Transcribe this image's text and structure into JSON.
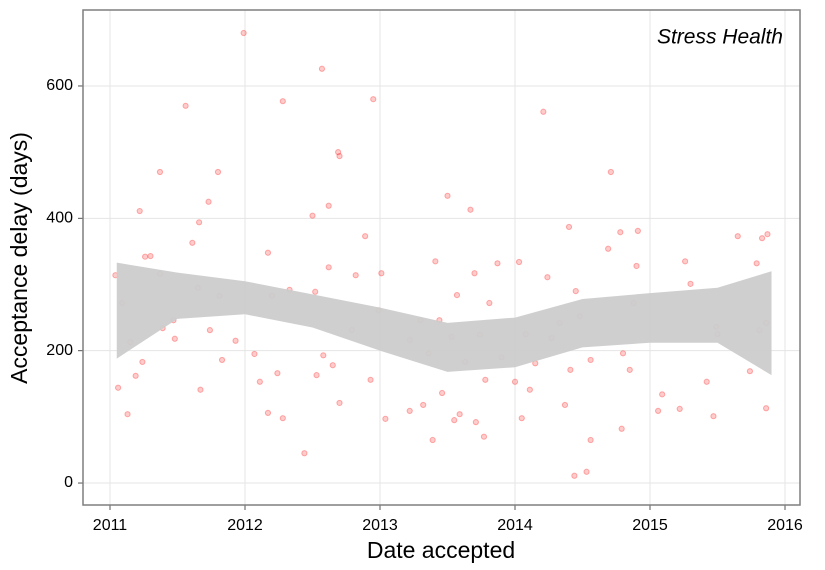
{
  "chart_data": {
    "type": "scatter",
    "annotation": "Stress Health",
    "x_label": "Date accepted",
    "y_label": "Acceptance delay (days)",
    "xlim": [
      2010.8,
      2016.111
    ],
    "xticks": [
      2011,
      2012,
      2013,
      2014,
      2015,
      2016
    ],
    "ylim": [
      -33.2,
      714.8
    ],
    "yticks": [
      0,
      200,
      400,
      600
    ],
    "grid": true,
    "points": {
      "color": "#ff0000",
      "alpha": 0.2,
      "x": [
        2011.04,
        2011.06,
        2011.09,
        2011.13,
        2011.15,
        2011.19,
        2011.22,
        2011.24,
        2011.26,
        2011.3,
        2011.37,
        2011.37,
        2011.39,
        2011.47,
        2011.48,
        2011.56,
        2011.61,
        2011.65,
        2011.66,
        2011.67,
        2011.73,
        2011.74,
        2011.8,
        2011.81,
        2011.83,
        2011.93,
        2011.99,
        2012.07,
        2012.11,
        2012.17,
        2012.17,
        2012.2,
        2012.24,
        2012.28,
        2012.28,
        2012.33,
        2012.44,
        2012.5,
        2012.52,
        2012.53,
        2012.57,
        2012.58,
        2012.62,
        2012.62,
        2012.65,
        2012.69,
        2012.7,
        2012.7,
        2012.79,
        2012.82,
        2012.89,
        2012.93,
        2012.95,
        2012.99,
        2013.01,
        2013.04,
        2013.22,
        2013.22,
        2013.3,
        2013.32,
        2013.36,
        2013.39,
        2013.41,
        2013.44,
        2013.46,
        2013.5,
        2013.53,
        2013.55,
        2013.57,
        2013.59,
        2013.63,
        2013.67,
        2013.7,
        2013.71,
        2013.74,
        2013.77,
        2013.78,
        2013.81,
        2013.87,
        2013.9,
        2014.0,
        2014.03,
        2014.05,
        2014.08,
        2014.11,
        2014.15,
        2014.21,
        2014.24,
        2014.27,
        2014.33,
        2014.37,
        2014.4,
        2014.41,
        2014.44,
        2014.45,
        2014.48,
        2014.53,
        2014.56,
        2014.56,
        2014.69,
        2014.71,
        2014.78,
        2014.79,
        2014.8,
        2014.85,
        2014.88,
        2014.9,
        2014.91,
        2015.06,
        2015.09,
        2015.22,
        2015.26,
        2015.3,
        2015.42,
        2015.47,
        2015.49,
        2015.5,
        2015.65,
        2015.74,
        2015.79,
        2015.83,
        2015.87,
        2015.86,
        2015.86,
        2015.81
      ],
      "values": [
        314,
        144,
        272,
        104,
        213,
        162,
        411,
        183,
        342,
        343,
        470,
        316,
        234,
        246,
        218,
        570,
        363,
        295,
        394,
        141,
        425,
        231,
        470,
        283,
        186,
        215,
        680,
        195,
        153,
        348,
        106,
        283,
        166,
        577,
        98,
        292,
        45,
        404,
        289,
        163,
        626,
        193,
        419,
        326,
        178,
        500,
        494,
        121,
        231,
        314,
        373,
        156,
        580,
        261,
        317,
        97,
        216,
        109,
        246,
        118,
        196,
        65,
        335,
        246,
        136,
        434,
        221,
        95,
        284,
        104,
        183,
        413,
        317,
        92,
        224,
        70,
        156,
        272,
        332,
        190,
        153,
        334,
        98,
        225,
        141,
        181,
        561,
        311,
        219,
        242,
        118,
        387,
        171,
        11,
        290,
        252,
        17,
        65,
        186,
        354,
        470,
        379,
        82,
        196,
        171,
        272,
        328,
        381,
        109,
        134,
        112,
        335,
        301,
        153,
        101,
        236,
        225,
        373,
        169,
        332,
        370,
        376,
        242,
        113,
        231
      ]
    },
    "band": {
      "color": "#cccccc",
      "x": [
        2011.05,
        2011.5,
        2012,
        2012.5,
        2013,
        2013.5,
        2014,
        2014.5,
        2015,
        2015.5,
        2015.9
      ],
      "upper": [
        333,
        318,
        305,
        285,
        265,
        242,
        250,
        278,
        287,
        295,
        320
      ],
      "lower": [
        188,
        248,
        255,
        235,
        200,
        168,
        175,
        205,
        212,
        212,
        163
      ]
    }
  }
}
